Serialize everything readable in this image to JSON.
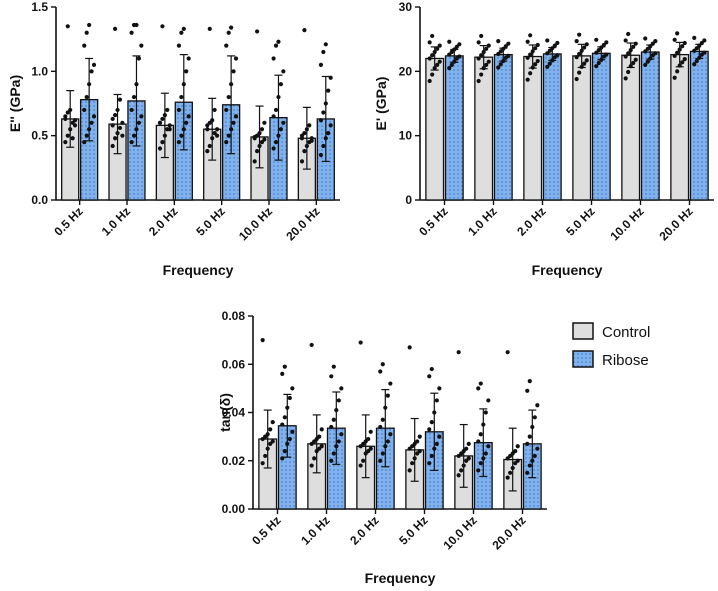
{
  "chart_data": [
    {
      "id": "loss",
      "type": "bar",
      "title": "",
      "xlabel": "Frequency",
      "ylabel": "E'' (GPa)",
      "ylim": [
        0,
        1.5
      ],
      "yticks": [
        0.0,
        0.5,
        1.0,
        1.5
      ],
      "ytick_labels": [
        "0.0",
        "0.5",
        "1.0",
        "1.5"
      ],
      "categories": [
        "0.5 Hz",
        "1.0 Hz",
        "2.0 Hz",
        "5.0 Hz",
        "10.0 Hz",
        "20.0 Hz"
      ],
      "series": [
        {
          "name": "Control",
          "values": [
            0.63,
            0.59,
            0.58,
            0.55,
            0.49,
            0.48
          ],
          "errors": [
            0.22,
            0.23,
            0.25,
            0.24,
            0.24,
            0.24
          ],
          "points": [
            [
              0.45,
              0.5,
              0.55,
              0.6,
              0.62,
              0.65,
              0.68,
              0.7,
              0.48,
              0.58,
              0.63,
              1.35
            ],
            [
              0.42,
              0.48,
              0.52,
              0.56,
              0.6,
              0.63,
              0.66,
              0.7,
              0.78,
              0.5,
              0.58,
              1.33
            ],
            [
              0.4,
              0.45,
              0.5,
              0.55,
              0.58,
              0.6,
              0.63,
              0.66,
              0.7,
              0.55,
              0.6,
              1.35
            ],
            [
              0.38,
              0.42,
              0.48,
              0.52,
              0.55,
              0.58,
              0.6,
              0.62,
              0.7,
              0.5,
              0.55,
              1.33
            ],
            [
              0.3,
              0.38,
              0.42,
              0.45,
              0.47,
              0.49,
              0.5,
              0.52,
              0.55,
              0.6,
              0.48,
              1.31
            ],
            [
              0.3,
              0.38,
              0.42,
              0.45,
              0.48,
              0.5,
              0.52,
              0.55,
              0.58,
              0.46,
              0.48,
              1.32
            ]
          ]
        },
        {
          "name": "Ribose",
          "values": [
            0.78,
            0.77,
            0.76,
            0.74,
            0.64,
            0.63
          ],
          "errors": [
            0.32,
            0.35,
            0.37,
            0.38,
            0.33,
            0.33
          ],
          "points": [
            [
              0.45,
              0.5,
              0.55,
              0.6,
              0.65,
              0.7,
              0.8,
              0.9,
              1.0,
              1.05,
              1.2,
              1.3,
              1.36
            ],
            [
              0.45,
              0.5,
              0.55,
              0.6,
              0.65,
              0.7,
              0.8,
              0.9,
              1.1,
              1.2,
              1.3,
              1.36,
              1.36
            ],
            [
              0.45,
              0.5,
              0.55,
              0.6,
              0.65,
              0.7,
              0.8,
              0.9,
              1.0,
              1.1,
              1.2,
              1.3,
              1.33
            ],
            [
              0.45,
              0.5,
              0.55,
              0.6,
              0.65,
              0.7,
              0.8,
              0.9,
              1.0,
              1.1,
              1.2,
              1.3,
              1.34
            ],
            [
              0.4,
              0.45,
              0.5,
              0.55,
              0.6,
              0.65,
              0.7,
              0.8,
              0.9,
              1.0,
              1.1,
              1.2,
              1.23
            ],
            [
              0.35,
              0.42,
              0.48,
              0.52,
              0.58,
              0.62,
              0.68,
              0.75,
              0.85,
              0.95,
              1.05,
              1.15,
              1.21
            ]
          ]
        }
      ]
    },
    {
      "id": "storage",
      "type": "bar",
      "title": "",
      "xlabel": "Frequency",
      "ylabel": "E' (GPa)",
      "ylim": [
        0,
        30
      ],
      "yticks": [
        0,
        10,
        20,
        30
      ],
      "ytick_labels": [
        "0",
        "10",
        "20",
        "30"
      ],
      "categories": [
        "0.5 Hz",
        "1.0 Hz",
        "2.0 Hz",
        "5.0 Hz",
        "10.0 Hz",
        "20.0 Hz"
      ],
      "series": [
        {
          "name": "Control",
          "values": [
            22.0,
            22.2,
            22.3,
            22.4,
            22.5,
            22.6
          ],
          "errors": [
            1.8,
            1.8,
            1.8,
            1.8,
            1.9,
            1.9
          ],
          "points": [
            [
              18.5,
              19.5,
              20.5,
              21,
              21.5,
              22,
              22.5,
              23,
              23.5,
              24,
              24.5,
              25.5
            ],
            [
              18.5,
              19.5,
              20.5,
              21,
              21.5,
              22,
              22.5,
              23,
              23.5,
              24,
              24.5,
              25.5
            ],
            [
              18.7,
              19.7,
              20.6,
              21.1,
              21.6,
              22.1,
              22.6,
              23.1,
              23.6,
              24.1,
              24.6,
              25.6
            ],
            [
              18.8,
              19.8,
              20.7,
              21.2,
              21.7,
              22.2,
              22.7,
              23.2,
              23.7,
              24.2,
              24.7,
              25.7
            ],
            [
              18.9,
              19.9,
              20.8,
              21.3,
              21.8,
              22.3,
              22.8,
              23.3,
              23.8,
              24.3,
              24.8,
              25.8
            ],
            [
              19.0,
              20.0,
              20.9,
              21.4,
              21.9,
              22.4,
              22.9,
              23.4,
              23.9,
              24.4,
              24.9,
              25.9
            ]
          ]
        },
        {
          "name": "Ribose",
          "values": [
            22.4,
            22.6,
            22.7,
            22.8,
            23.0,
            23.1
          ],
          "errors": [
            1.0,
            1.0,
            1.0,
            1.0,
            1.1,
            1.1
          ],
          "points": [
            [
              20.5,
              21,
              21.5,
              22,
              22.3,
              22.6,
              23,
              23.4,
              23.8,
              24.2,
              24.6
            ],
            [
              20.6,
              21.1,
              21.6,
              22.1,
              22.4,
              22.7,
              23.1,
              23.5,
              23.9,
              24.3,
              24.7
            ],
            [
              20.7,
              21.2,
              21.7,
              22.2,
              22.5,
              22.8,
              23.2,
              23.6,
              24.0,
              24.4,
              24.8
            ],
            [
              20.8,
              21.3,
              21.8,
              22.3,
              22.6,
              22.9,
              23.3,
              23.7,
              24.1,
              24.5,
              24.9
            ],
            [
              21.0,
              21.5,
              22.0,
              22.5,
              22.8,
              23.1,
              23.5,
              23.9,
              24.3,
              24.7,
              25.1
            ],
            [
              21.1,
              21.6,
              22.1,
              22.6,
              22.9,
              23.2,
              23.6,
              24.0,
              24.4,
              24.8,
              25.2
            ]
          ]
        }
      ]
    },
    {
      "id": "tan",
      "type": "bar",
      "title": "",
      "xlabel": "Frequency",
      "ylabel": "tan(δ)",
      "ylim": [
        0,
        0.08
      ],
      "yticks": [
        0.0,
        0.02,
        0.04,
        0.06,
        0.08
      ],
      "ytick_labels": [
        "0.00",
        "0.02",
        "0.04",
        "0.06",
        "0.08"
      ],
      "categories": [
        "0.5 Hz",
        "1.0 Hz",
        "2.0 Hz",
        "5.0 Hz",
        "10.0 Hz",
        "20.0 Hz"
      ],
      "series": [
        {
          "name": "Control",
          "values": [
            0.029,
            0.027,
            0.026,
            0.0245,
            0.022,
            0.0205
          ],
          "errors": [
            0.012,
            0.012,
            0.013,
            0.013,
            0.013,
            0.013
          ],
          "points": [
            [
              0.019,
              0.022,
              0.025,
              0.027,
              0.028,
              0.029,
              0.03,
              0.031,
              0.033,
              0.036,
              0.07
            ],
            [
              0.018,
              0.021,
              0.024,
              0.025,
              0.026,
              0.027,
              0.028,
              0.029,
              0.03,
              0.033,
              0.068
            ],
            [
              0.018,
              0.02,
              0.023,
              0.024,
              0.025,
              0.026,
              0.027,
              0.028,
              0.029,
              0.032,
              0.069
            ],
            [
              0.016,
              0.019,
              0.021,
              0.023,
              0.024,
              0.025,
              0.026,
              0.027,
              0.028,
              0.03,
              0.067
            ],
            [
              0.014,
              0.016,
              0.018,
              0.02,
              0.021,
              0.022,
              0.023,
              0.024,
              0.025,
              0.027,
              0.065
            ],
            [
              0.013,
              0.015,
              0.017,
              0.019,
              0.02,
              0.021,
              0.022,
              0.023,
              0.024,
              0.026,
              0.065
            ]
          ]
        },
        {
          "name": "Ribose",
          "values": [
            0.0345,
            0.0335,
            0.0335,
            0.032,
            0.0275,
            0.027
          ],
          "errors": [
            0.013,
            0.015,
            0.016,
            0.016,
            0.014,
            0.014
          ],
          "points": [
            [
              0.021,
              0.024,
              0.027,
              0.029,
              0.032,
              0.035,
              0.038,
              0.042,
              0.046,
              0.05,
              0.056,
              0.059
            ],
            [
              0.02,
              0.023,
              0.026,
              0.028,
              0.031,
              0.034,
              0.037,
              0.041,
              0.045,
              0.05,
              0.055,
              0.059
            ],
            [
              0.02,
              0.023,
              0.026,
              0.028,
              0.031,
              0.034,
              0.037,
              0.042,
              0.047,
              0.052,
              0.057,
              0.06
            ],
            [
              0.019,
              0.022,
              0.025,
              0.027,
              0.03,
              0.033,
              0.036,
              0.04,
              0.045,
              0.05,
              0.055,
              0.058
            ],
            [
              0.016,
              0.019,
              0.021,
              0.023,
              0.026,
              0.028,
              0.031,
              0.035,
              0.04,
              0.045,
              0.05,
              0.052
            ],
            [
              0.015,
              0.018,
              0.02,
              0.022,
              0.025,
              0.027,
              0.03,
              0.034,
              0.038,
              0.043,
              0.049,
              0.053
            ]
          ]
        }
      ]
    }
  ],
  "legend": {
    "entries": [
      {
        "label": "Control",
        "color": "#dedede"
      },
      {
        "label": "Ribose",
        "color": "#7fb2ee"
      }
    ]
  },
  "colors": {
    "control": "#dedede",
    "ribose": "#7fb2ee",
    "outline": "#111111"
  }
}
